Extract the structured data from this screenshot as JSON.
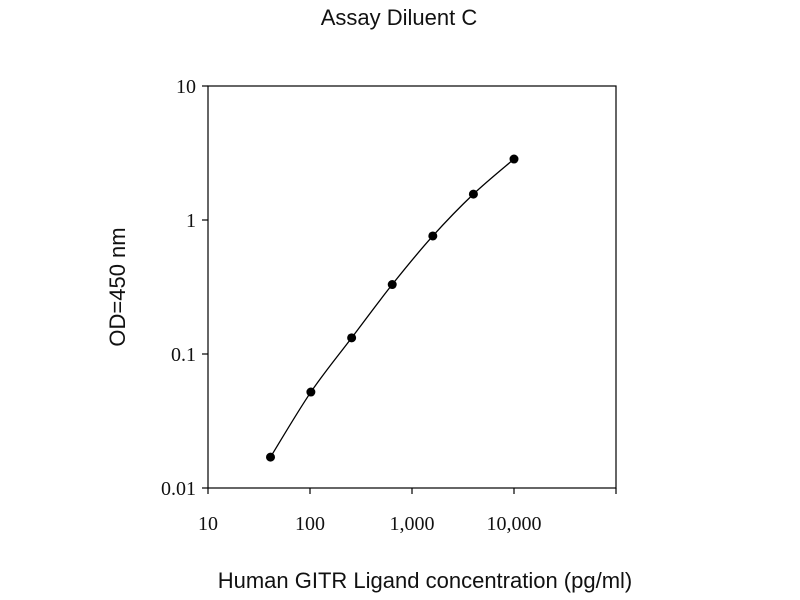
{
  "chart_data": {
    "type": "scatter",
    "title": "Assay Diluent C",
    "xlabel": "Human GITR Ligand concentration (pg/ml)",
    "ylabel": "OD=450 nm",
    "xscale": "log",
    "yscale": "log",
    "xlim": [
      10,
      100000
    ],
    "ylim": [
      0.01,
      10
    ],
    "x_ticks": [
      10,
      100,
      1000,
      10000
    ],
    "x_tick_labels": [
      "10",
      "100",
      "1,000",
      "10,000"
    ],
    "y_ticks": [
      0.01,
      0.1,
      1,
      10
    ],
    "y_tick_labels": [
      "0.01",
      "0.1",
      "1",
      "10"
    ],
    "grid": false,
    "legend": "none",
    "series": [
      {
        "x": [
          41,
          102,
          256,
          640,
          1600,
          4000,
          10000
        ],
        "y": [
          0.017,
          0.052,
          0.132,
          0.33,
          0.76,
          1.56,
          2.85
        ],
        "marker": "circle",
        "fit_line": true,
        "color": "#000000"
      }
    ]
  }
}
